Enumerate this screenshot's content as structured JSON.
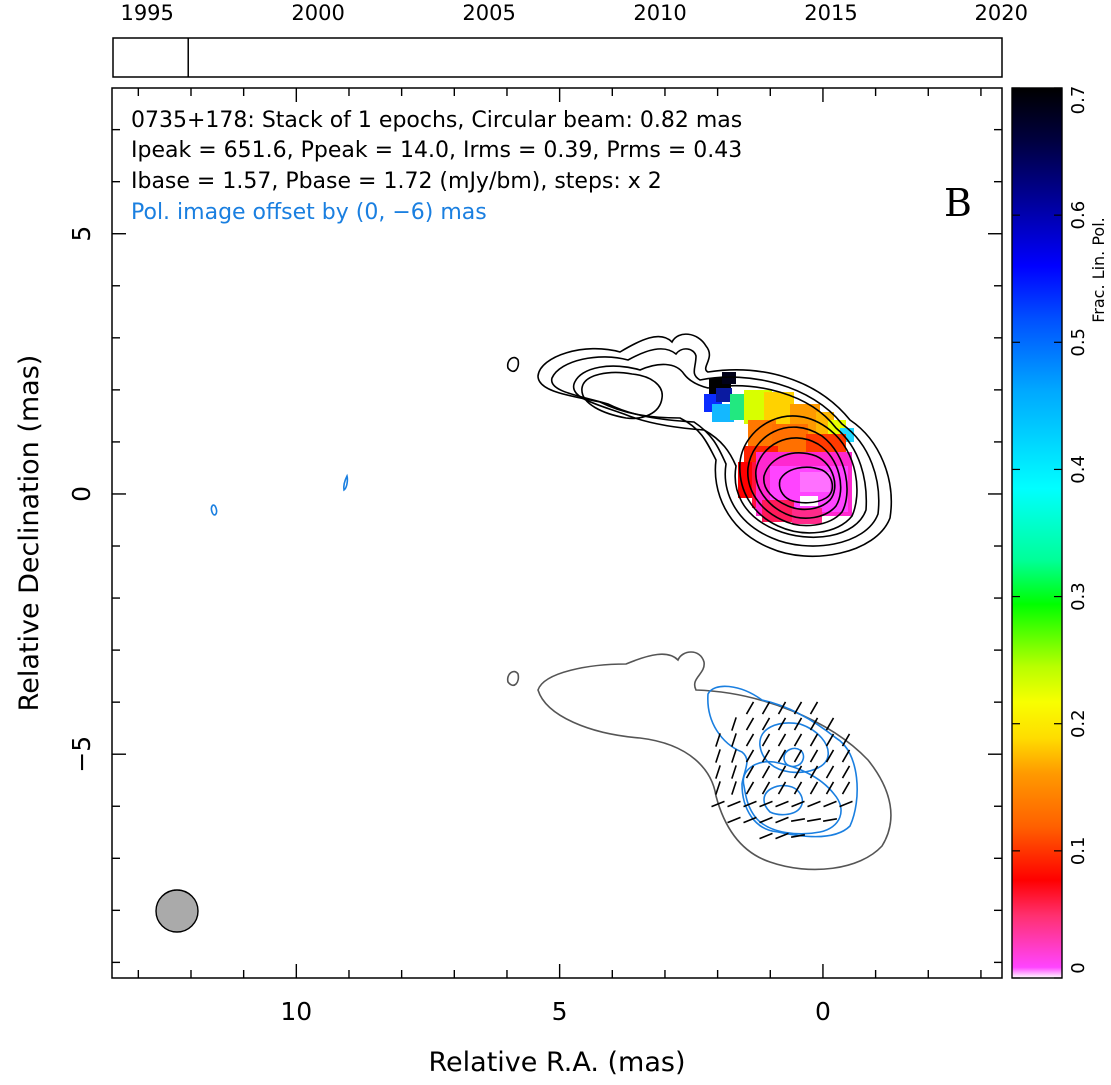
{
  "chart_data": {
    "type": "contour",
    "source": "0735+178",
    "info_lines": [
      "0735+178: Stack of 1 epochs, Circular beam: 0.82 mas",
      "Ipeak = 651.6, Ppeak = 14.0, Irms = 0.39, Prms = 0.43",
      "Ibase = 1.57, Pbase = 1.72 (mJy/bm), steps: x 2"
    ],
    "offset_note": "Pol. image offset by (0, −6) mas",
    "panel_letter": "B",
    "xlabel": "Relative R.A. (mas)",
    "ylabel": "Relative Declination (mas)",
    "xlim": [
      13.5,
      -3.4
    ],
    "ylim": [
      -9.3,
      7.8
    ],
    "x_ticks": [
      10,
      5,
      0
    ],
    "x_tick_labels": [
      "10",
      "5",
      "0"
    ],
    "y_ticks": [
      5,
      0,
      -5
    ],
    "y_tick_labels": [
      "5",
      "0",
      "−5"
    ],
    "epoch_timeline": {
      "range": [
        1994,
        2020
      ],
      "tick_years": [
        1995,
        2000,
        2005,
        2010,
        2015,
        2020
      ],
      "epochs": [
        1996.2
      ]
    },
    "colorbar": {
      "label": "Frac. Lin. Pol.",
      "range": [
        0,
        0.7
      ],
      "ticks": [
        0,
        0.1,
        0.2,
        0.3,
        0.4,
        0.5,
        0.6,
        0.7
      ],
      "tick_labels": [
        "0",
        "0.1",
        "0.2",
        "0.3",
        "0.4",
        "0.5",
        "0.6",
        "0.7"
      ]
    },
    "beam": {
      "ra": 12.4,
      "dec": -8.0,
      "diameter_mas": 0.82
    },
    "colors": {
      "total_intensity_contours": "#000000",
      "polarization_contours": "#1a7fe0",
      "lowest_contour_offset_image": "#555555",
      "evpa_ticks": "#000000",
      "beam_fill": "#aaaaaa"
    }
  }
}
